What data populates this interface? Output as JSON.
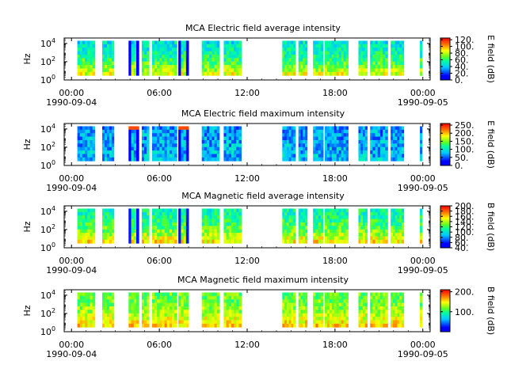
{
  "figure": {
    "panels": [
      {
        "title": "MCA  Electric field average intensity",
        "ylabel": "Hz",
        "colorbar_label": "E field (dB)",
        "colorbar_ticks": [
          "0.",
          "20.",
          "40.",
          "60.",
          "80.",
          "100.",
          "120."
        ],
        "colorbar_range": [
          0,
          125
        ],
        "base_level": 45,
        "glitch": false
      },
      {
        "title": "MCA  Electric field maximum intensity",
        "ylabel": "Hz",
        "colorbar_label": "E field (dB)",
        "colorbar_ticks": [
          "0.",
          "50.",
          "100.",
          "150.",
          "200.",
          "250."
        ],
        "colorbar_range": [
          0,
          260
        ],
        "base_level": 0.32,
        "glitch": true
      },
      {
        "title": "MCA  Magnetic field average intensity",
        "ylabel": "Hz",
        "colorbar_label": "B field (dB)",
        "colorbar_ticks": [
          "40.",
          "60.",
          "80.",
          "100.",
          "120.",
          "140.",
          "160.",
          "180.",
          "200."
        ],
        "colorbar_range": [
          40,
          200
        ],
        "base_level": 0.5,
        "glitch": false
      },
      {
        "title": "MCA  Magnetic field maximum intensity",
        "ylabel": "Hz",
        "colorbar_label": "B field (dB)",
        "colorbar_ticks": [
          "100.",
          "200."
        ],
        "colorbar_range": [
          0,
          210
        ],
        "base_level": 0.55,
        "glitch": false
      }
    ],
    "x_ticks": [
      {
        "time": "00:00",
        "date": "1990-09-04"
      },
      {
        "time": "06:00",
        "date": ""
      },
      {
        "time": "12:00",
        "date": ""
      },
      {
        "time": "18:00",
        "date": ""
      },
      {
        "time": "00:00",
        "date": "1990-09-05"
      }
    ],
    "y_ticks": [
      {
        "base": "10",
        "exp": "0"
      },
      {
        "base": "10",
        "exp": "2"
      },
      {
        "base": "10",
        "exp": "4"
      }
    ]
  },
  "chart_data": {
    "type": "heatmap",
    "x_range_hours": [
      -0.5,
      24.5
    ],
    "y_range_log10_hz": [
      0,
      4.6
    ],
    "frequency_band_log10_hz": [
      0.5,
      4.3
    ],
    "data_segments_hours": [
      [
        0.4,
        1.6
      ],
      [
        2.1,
        2.9
      ],
      [
        3.9,
        4.6
      ],
      [
        4.8,
        5.3
      ],
      [
        5.5,
        7.2
      ],
      [
        7.3,
        8.0
      ],
      [
        8.9,
        10.1
      ],
      [
        10.4,
        11.6
      ],
      [
        14.4,
        15.3
      ],
      [
        15.5,
        16.1
      ],
      [
        16.5,
        17.2
      ],
      [
        17.3,
        18.9
      ],
      [
        19.6,
        20.2
      ],
      [
        20.4,
        21.6
      ],
      [
        21.8,
        22.7
      ],
      [
        23.8,
        23.95
      ]
    ]
  }
}
